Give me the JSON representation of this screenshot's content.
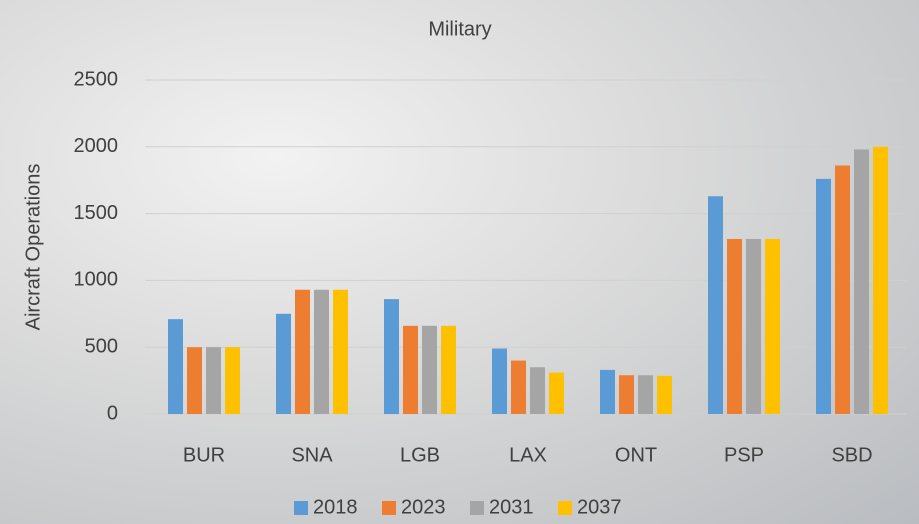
{
  "chart_data": {
    "type": "bar",
    "title": "Military",
    "y_label": "Aircraft Operations",
    "categories": [
      "BUR",
      "SNA",
      "LGB",
      "LAX",
      "ONT",
      "PSP",
      "SBD"
    ],
    "series": [
      {
        "name": "2018",
        "color": "#5b9bd5",
        "values": [
          710,
          750,
          860,
          490,
          330,
          1630,
          1760
        ]
      },
      {
        "name": "2023",
        "color": "#ed7d31",
        "values": [
          500,
          930,
          660,
          400,
          290,
          1310,
          1860
        ]
      },
      {
        "name": "2031",
        "color": "#a5a5a5",
        "values": [
          500,
          930,
          660,
          350,
          290,
          1310,
          1980
        ]
      },
      {
        "name": "2037",
        "color": "#ffc000",
        "values": [
          500,
          930,
          660,
          310,
          285,
          1310,
          2000
        ]
      }
    ],
    "ylim": [
      0,
      2500
    ],
    "yticks": [
      0,
      500,
      1000,
      1500,
      2000,
      2500
    ],
    "grid": true,
    "legend": "bottom"
  }
}
